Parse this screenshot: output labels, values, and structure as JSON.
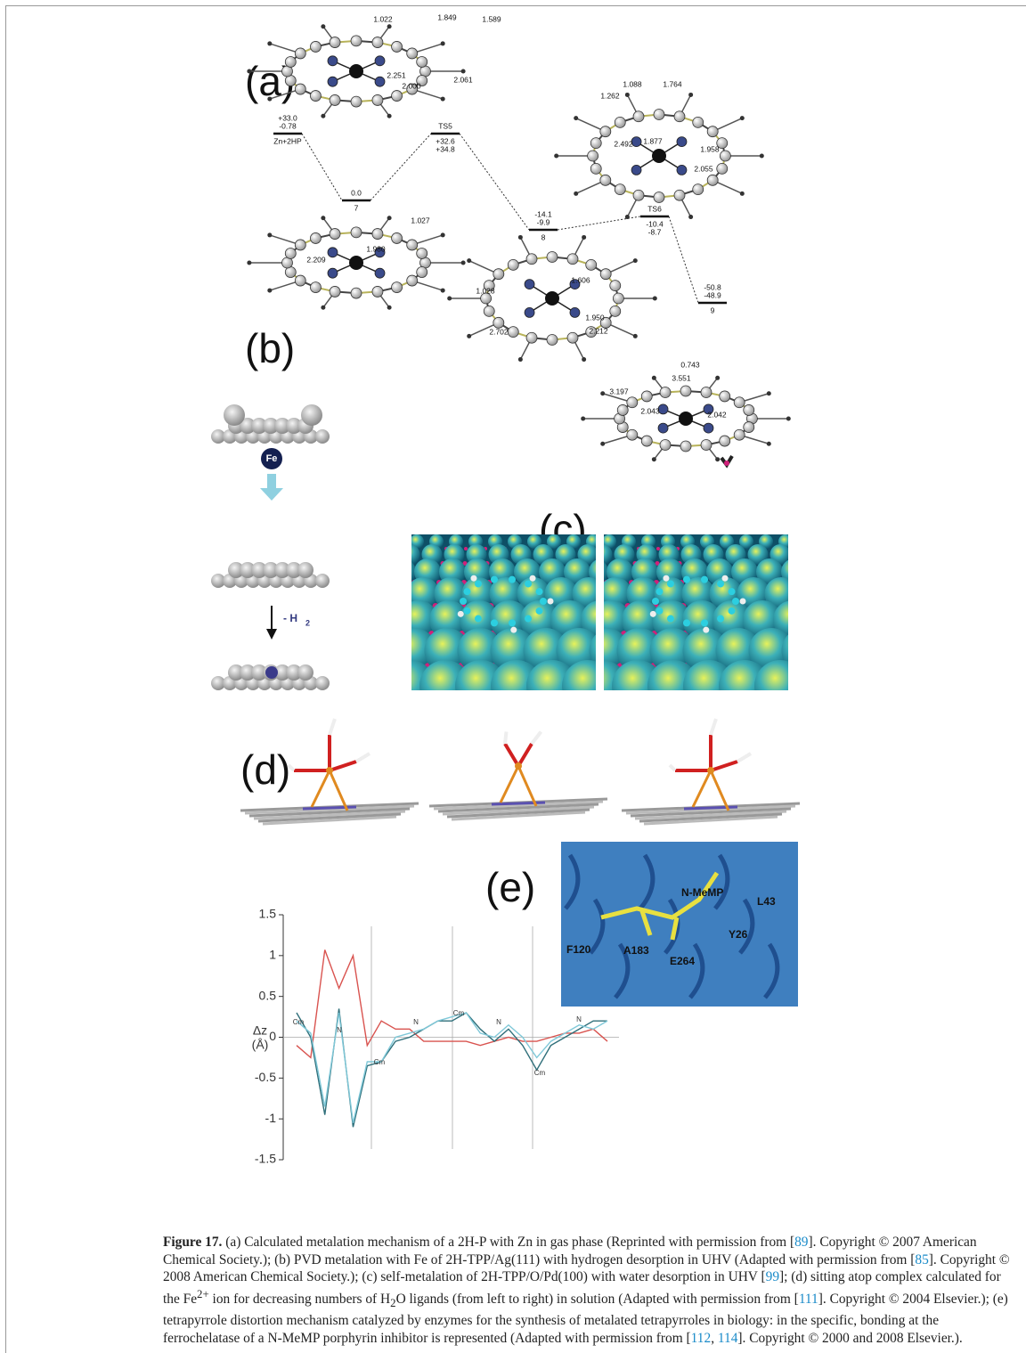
{
  "panel_labels": [
    "(a)",
    "(b)",
    "(c)",
    "(d)",
    "(e)"
  ],
  "energy_diagram": {
    "levels": [
      {
        "energies": [
          "+33.0",
          "-0.78"
        ],
        "label": "Zn+2HP"
      },
      {
        "energies": [
          "0.0"
        ],
        "label": "7"
      },
      {
        "label": "TS5",
        "energies": [
          "+32.6",
          "+34.8"
        ]
      },
      {
        "energies": [
          "-14.1",
          "-9.9"
        ],
        "label": "8"
      },
      {
        "label": "TS6",
        "energies": [
          "-10.4",
          "-8.7"
        ]
      },
      {
        "energies": [
          "-50.8",
          "-48.9"
        ],
        "label": "9"
      }
    ]
  },
  "molecules": [
    {
      "bond_lengths": [
        "1.022",
        "1.849",
        "1.589",
        "2.251",
        "2.000",
        "2.061"
      ]
    },
    {
      "bond_lengths": [
        "1.088",
        "1.764",
        "1.262",
        "2.492",
        "1.877",
        "1.958",
        "2.055"
      ]
    },
    {
      "bond_lengths": [
        "1.027",
        "1.980",
        "2.209"
      ]
    },
    {
      "bond_lengths": [
        "1.028",
        "1.606",
        "2.702",
        "1.950",
        "2.212"
      ]
    },
    {
      "bond_lengths": [
        "0.743",
        "3.551",
        "3.197",
        "2.043",
        "2.042"
      ]
    }
  ],
  "panel_b": {
    "atom_label": "Fe",
    "step_label": "- H",
    "step_subscript": "2"
  },
  "panel_e": {
    "residue_labels": [
      "N-MeMP",
      "L43",
      "Y26",
      "F120",
      "A183",
      "E264"
    ],
    "plot": {
      "type": "line",
      "ylabel": [
        "Δz",
        "(Å)"
      ],
      "ylim": [
        -1.5,
        1.5
      ],
      "yticks": [
        1.5,
        1,
        0.5,
        0,
        -0.5,
        -1,
        -1.5
      ],
      "atom_labels": [
        "Cm",
        "N",
        "Cm",
        "N",
        "Cm",
        "N",
        "Cm",
        "N"
      ],
      "series": [
        {
          "color": "#d9534f",
          "values": [
            -0.1,
            -0.25,
            1.07,
            0.6,
            1.0,
            -0.1,
            0.2,
            0.1,
            0.1,
            -0.05,
            -0.05,
            -0.05,
            -0.05,
            -0.1,
            -0.05,
            0.0,
            -0.05,
            -0.05,
            0.0,
            0.05,
            0.05,
            0.1,
            -0.05
          ]
        },
        {
          "color": "#2f6f7a",
          "values": [
            0.3,
            0.0,
            -0.95,
            0.35,
            -1.1,
            -0.35,
            -0.3,
            -0.05,
            0.0,
            0.1,
            0.2,
            0.2,
            0.3,
            0.1,
            -0.05,
            0.1,
            -0.1,
            -0.4,
            -0.1,
            0.0,
            0.1,
            0.2,
            0.2
          ]
        },
        {
          "color": "#7fc8d8",
          "values": [
            0.2,
            0.05,
            -0.85,
            0.3,
            -1.05,
            -0.3,
            -0.3,
            0.0,
            0.05,
            0.1,
            0.2,
            0.25,
            0.3,
            0.05,
            0.0,
            0.15,
            0.0,
            -0.25,
            -0.05,
            0.05,
            0.15,
            0.1,
            0.2
          ]
        }
      ]
    }
  },
  "caption": {
    "label": "Figure 17.",
    "parts": [
      "(a) Calculated metalation mechanism of a 2H-P with Zn in gas phase (Reprinted with permission from [",
      "89",
      "]. Copyright © 2007 American Chemical Society.); (b) PVD metalation with Fe of 2H-TPP/Ag(111) with hydrogen desorption in UHV (Adapted with permission from [",
      "85",
      "]. Copyright © 2008 American Chemical Society.); (c) self-metalation of 2H-TPP/O/Pd(100) with water desorption in UHV [",
      "99",
      "]; (d) sitting atop complex calculated for the Fe",
      "2+",
      " ion for decreasing numbers of H",
      "2",
      "O ligands (from left to right) in solution (Adapted with permission from [",
      "111",
      "]. Copyright © 2004 Elsevier.); (e) tetrapyrrole distortion mechanism catalyzed by enzymes for the synthesis of metalated tetrapyrroles in biology: in the specific, bonding at the ferrochelatase of a N-MeMP porphyrin inhibitor is represented (Adapted with permission from [",
      "112",
      ", ",
      "114",
      "]. Copyright © 2000 and 2008 Elsevier.)."
    ]
  }
}
